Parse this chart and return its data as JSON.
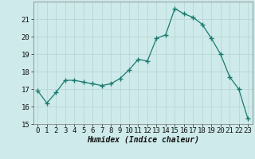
{
  "x": [
    0,
    1,
    2,
    3,
    4,
    5,
    6,
    7,
    8,
    9,
    10,
    11,
    12,
    13,
    14,
    15,
    16,
    17,
    18,
    19,
    20,
    21,
    22,
    23
  ],
  "y": [
    16.9,
    16.2,
    16.8,
    17.5,
    17.5,
    17.4,
    17.3,
    17.2,
    17.3,
    17.6,
    18.1,
    18.7,
    18.6,
    19.9,
    20.1,
    21.6,
    21.3,
    21.1,
    20.7,
    19.9,
    19.0,
    17.7,
    17.0,
    15.3
  ],
  "line_color": "#1a7a6e",
  "marker": "+",
  "marker_size": 4,
  "marker_lw": 1.0,
  "bg_color": "#ceeaea",
  "grid_color": "#b8d8d5",
  "xlabel": "Humidex (Indice chaleur)",
  "xlim": [
    -0.5,
    23.5
  ],
  "ylim": [
    15,
    22
  ],
  "yticks": [
    15,
    16,
    17,
    18,
    19,
    20,
    21
  ],
  "xticks": [
    0,
    1,
    2,
    3,
    4,
    5,
    6,
    7,
    8,
    9,
    10,
    11,
    12,
    13,
    14,
    15,
    16,
    17,
    18,
    19,
    20,
    21,
    22,
    23
  ],
  "label_fontsize": 7,
  "tick_fontsize": 6.5
}
